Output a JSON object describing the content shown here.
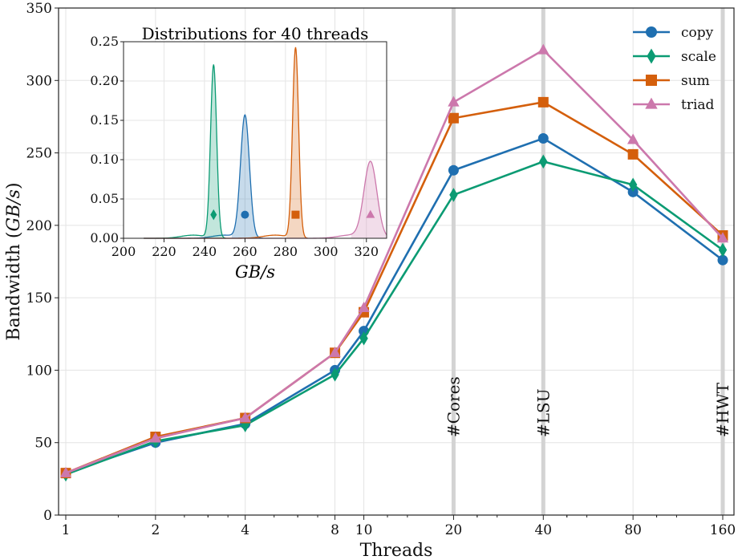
{
  "chart_data": [
    {
      "type": "line",
      "xlabel": "Threads",
      "ylabel": "Bandwidth (GB/s)",
      "x_scale": "log2",
      "x": [
        1,
        2,
        4,
        8,
        10,
        20,
        40,
        80,
        160
      ],
      "x_tick_labels": [
        "1",
        "2",
        "4",
        "8",
        "10",
        "20",
        "40",
        "80",
        "160"
      ],
      "ylim": [
        0,
        350
      ],
      "y_ticks": [
        0,
        50,
        100,
        150,
        200,
        250,
        300,
        350
      ],
      "grid": true,
      "legend_position": "top-right",
      "series": [
        {
          "name": "copy",
          "color": "#1f6fb0",
          "marker": "circle",
          "values": [
            29,
            50,
            63,
            100,
            127,
            238,
            260,
            223,
            176
          ]
        },
        {
          "name": "scale",
          "color": "#0b9b73",
          "marker": "diamond",
          "values": [
            28,
            51,
            62,
            97,
            122,
            221,
            244,
            228,
            183
          ]
        },
        {
          "name": "sum",
          "color": "#d45f0c",
          "marker": "square",
          "values": [
            29,
            54,
            67,
            112,
            140,
            274,
            285,
            249,
            193
          ]
        },
        {
          "name": "triad",
          "color": "#cc78ac",
          "marker": "triangle",
          "values": [
            29,
            53,
            67,
            112,
            143,
            285,
            321,
            259,
            191
          ]
        }
      ],
      "vertical_lines": [
        {
          "x": 20,
          "label": "#Cores"
        },
        {
          "x": 40,
          "label": "#LSU"
        },
        {
          "x": 160,
          "label": "#HWT"
        }
      ]
    },
    {
      "type": "area",
      "title": "Distributions for 40 threads",
      "xlabel": "GB/s",
      "xlim": [
        200,
        330
      ],
      "x_ticks": [
        200,
        220,
        240,
        260,
        280,
        300,
        320
      ],
      "ylim": [
        0,
        0.25
      ],
      "y_ticks": [
        "0.00",
        "0.05",
        "0.10",
        "0.15",
        "0.20",
        "0.25"
      ],
      "series": [
        {
          "name": "copy",
          "color": "#1f6fb0",
          "marker": "circle",
          "peak_x": 260,
          "peak_density": 0.156,
          "width": 2.2,
          "marker_y": 0.03
        },
        {
          "name": "scale",
          "color": "#0b9b73",
          "marker": "diamond",
          "peak_x": 244.5,
          "peak_density": 0.22,
          "width": 1.5,
          "marker_y": 0.03
        },
        {
          "name": "sum",
          "color": "#d45f0c",
          "marker": "square",
          "peak_x": 285,
          "peak_density": 0.242,
          "width": 1.5,
          "marker_y": 0.03
        },
        {
          "name": "triad",
          "color": "#cc78ac",
          "marker": "triangle",
          "peak_x": 322,
          "peak_density": 0.097,
          "width": 3.2,
          "marker_y": 0.03
        }
      ]
    }
  ]
}
